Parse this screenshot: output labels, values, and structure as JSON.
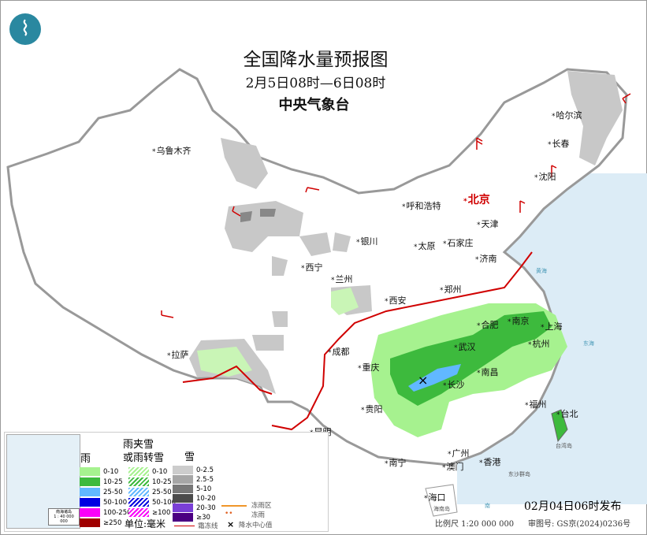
{
  "header": {
    "title": "全国降水量预报图",
    "period": "2月5日08时—6日08时",
    "issuer": "中央气象台",
    "logo": "cma-logo-icon"
  },
  "cities": [
    {
      "name": "乌鲁木齐"
    },
    {
      "name": "哈尔滨"
    },
    {
      "name": "长春"
    },
    {
      "name": "沈阳"
    },
    {
      "name": "北京",
      "capital": true
    },
    {
      "name": "天津"
    },
    {
      "name": "呼和浩特"
    },
    {
      "name": "太原"
    },
    {
      "name": "石家庄"
    },
    {
      "name": "济南"
    },
    {
      "name": "银川"
    },
    {
      "name": "西宁"
    },
    {
      "name": "兰州"
    },
    {
      "name": "郑州"
    },
    {
      "name": "西安"
    },
    {
      "name": "合肥"
    },
    {
      "name": "南京"
    },
    {
      "name": "上海"
    },
    {
      "name": "武汉"
    },
    {
      "name": "杭州"
    },
    {
      "name": "成都"
    },
    {
      "name": "重庆"
    },
    {
      "name": "长沙"
    },
    {
      "name": "南昌"
    },
    {
      "name": "拉萨"
    },
    {
      "name": "贵阳"
    },
    {
      "name": "福州"
    },
    {
      "name": "台北"
    },
    {
      "name": "昆明"
    },
    {
      "name": "南宁"
    },
    {
      "name": "广州"
    },
    {
      "name": "澳门"
    },
    {
      "name": "香港"
    },
    {
      "name": "海口"
    }
  ],
  "seas": {
    "yellow_sea": "黄海",
    "east_sea": "东海",
    "south_sea": "南",
    "taiwan": "台湾岛",
    "hainan": "海南岛",
    "dongsha": "东沙群岛"
  },
  "legend": {
    "rain": {
      "title": "雨",
      "items": [
        {
          "label": "0-10",
          "color": "#a6f28f"
        },
        {
          "label": "10-25",
          "color": "#3dba3d"
        },
        {
          "label": "25-50",
          "color": "#61b8ff"
        },
        {
          "label": "50-100",
          "color": "#0000e1"
        },
        {
          "label": "100-250",
          "color": "#fa00fa"
        },
        {
          "label": "≥250",
          "color": "#800040"
        }
      ]
    },
    "mixed": {
      "title_line1": "雨夹雪",
      "title_line2": "或雨转雪",
      "items": [
        {
          "label": "0-10",
          "color": "#a6f28f"
        },
        {
          "label": "10-25",
          "color": "#3dba3d"
        },
        {
          "label": "25-50",
          "color": "#61b8ff"
        },
        {
          "label": "50-100",
          "color": "#0000e1"
        },
        {
          "label": "≥100",
          "color": "#fa00fa"
        }
      ]
    },
    "snow": {
      "title": "雪",
      "items": [
        {
          "label": "0-2.5",
          "color": "#cccccc"
        },
        {
          "label": "2.5-5",
          "color": "#a6a6a6"
        },
        {
          "label": "5-10",
          "color": "#787878"
        },
        {
          "label": "10-20",
          "color": "#4b4b4b"
        },
        {
          "label": "20-30",
          "color": "#7a3fd6"
        },
        {
          "label": "≥30",
          "color": "#4b0082"
        }
      ]
    },
    "unit": "单位:毫米",
    "freezing_rain_area": "冻雨区",
    "freezing_rain": "冻雨",
    "frost_line": "霜冻线",
    "precip_center": "降水中心值",
    "inset_title": "南海诸岛",
    "inset_scale": "1 : 40 000 000"
  },
  "footer": {
    "published": "02月04日06时发布",
    "scale": "比例尺 1:20 000 000",
    "approval": "审图号: GS京(2024)0236号"
  }
}
